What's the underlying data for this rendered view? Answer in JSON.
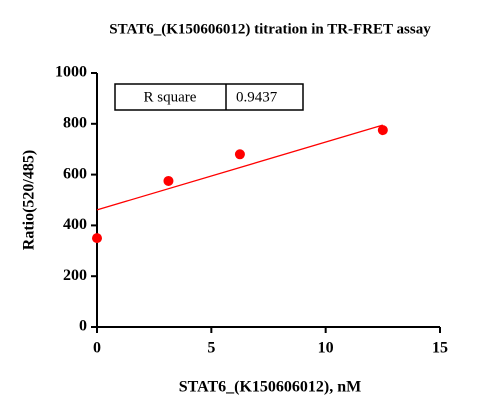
{
  "chart_data": {
    "type": "scatter",
    "title": "STAT6_(K150606012) titration in TR-FRET assay",
    "x_label": "STAT6_(K150606012), nM",
    "y_label": "Ratio(520/485)",
    "x": [
      0,
      3.125,
      6.25,
      12.5
    ],
    "values": [
      350,
      575,
      680,
      775
    ],
    "color": "#ff0000",
    "fit": {
      "x": [
        0,
        12.5
      ],
      "values": [
        461,
        795
      ],
      "color": "#ff0000"
    },
    "xlim": [
      0,
      15
    ],
    "xticks": [
      0,
      5,
      10,
      15
    ],
    "ylim": [
      0,
      1000
    ],
    "yticks": [
      0,
      200,
      400,
      600,
      800,
      1000
    ],
    "stats": {
      "label": "R square",
      "value": "0.9437"
    }
  }
}
